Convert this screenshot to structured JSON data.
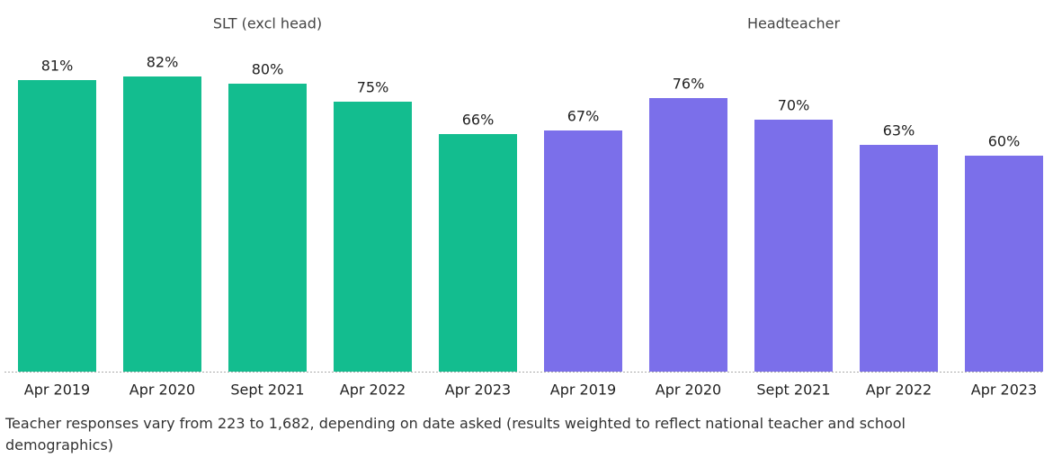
{
  "chart_data": [
    {
      "type": "bar",
      "title": "SLT (excl head)",
      "categories": [
        "Apr 2019",
        "Apr 2020",
        "Sept 2021",
        "Apr 2022",
        "Apr 2023"
      ],
      "values": [
        81,
        82,
        80,
        75,
        66
      ],
      "value_labels": [
        "81%",
        "82%",
        "80%",
        "75%",
        "66%"
      ],
      "color": "#13bd8f"
    },
    {
      "type": "bar",
      "title": "Headteacher",
      "categories": [
        "Apr 2019",
        "Apr 2020",
        "Sept 2021",
        "Apr 2022",
        "Apr 2023"
      ],
      "values": [
        67,
        76,
        70,
        63,
        60
      ],
      "value_labels": [
        "67%",
        "76%",
        "70%",
        "63%",
        "60%"
      ],
      "color": "#7b6fea"
    }
  ],
  "note": "Teacher responses vary from 223 to 1,682, depending on date asked (results weighted to reflect national teacher and school demographics)"
}
